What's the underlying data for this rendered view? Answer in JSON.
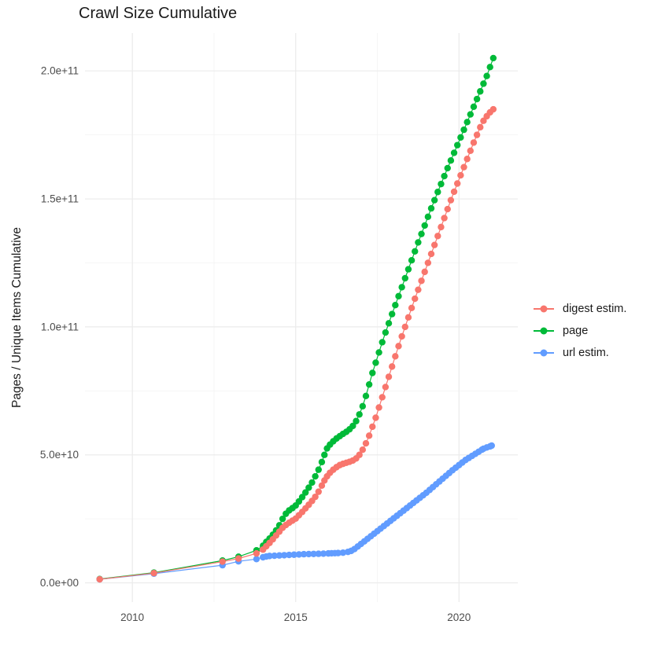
{
  "chart": {
    "title": "Crawl Size Cumulative",
    "y_axis_title": "Pages / Unique Items Cumulative"
  },
  "chart_data": {
    "type": "scatter",
    "title": "Crawl Size Cumulative",
    "xlabel": "",
    "ylabel": "Pages / Unique Items Cumulative",
    "values_unit": "billions (1e9 pages); axis labels shown in scientific notation",
    "grid": "major and minor, light gray on white panel",
    "legend_position": "right",
    "x_domain": [
      2008.55,
      2021.8
    ],
    "y_domain": [
      -7.5,
      214.8
    ],
    "x_ticks": {
      "values": [
        2010,
        2015,
        2020
      ],
      "labels": [
        "2010",
        "2015",
        "2020"
      ],
      "minor": [
        2012.5,
        2017.5
      ]
    },
    "y_ticks": {
      "values": [
        0,
        50,
        100,
        150,
        200
      ],
      "labels": [
        "0.0e+00",
        "5.0e+10",
        "1.0e+11",
        "1.5e+11",
        "2.0e+11"
      ],
      "minor": [
        25,
        75,
        125,
        175
      ]
    },
    "draw_order": [
      1,
      2,
      0
    ],
    "series": [
      {
        "name": "digest estim.",
        "color": "#F8766D",
        "points": [
          [
            2009.0,
            1.4
          ],
          [
            2010.66,
            3.8
          ],
          [
            2012.76,
            8.3
          ],
          [
            2013.25,
            9.5
          ],
          [
            2013.8,
            11.5
          ],
          [
            2014.0,
            13.0
          ],
          [
            2014.1,
            14.3
          ],
          [
            2014.2,
            15.6
          ],
          [
            2014.3,
            17.0
          ],
          [
            2014.4,
            18.5
          ],
          [
            2014.5,
            20.0
          ],
          [
            2014.6,
            21.5
          ],
          [
            2014.7,
            22.6
          ],
          [
            2014.8,
            23.5
          ],
          [
            2014.9,
            24.3
          ],
          [
            2015.0,
            25.1
          ],
          [
            2015.1,
            26.4
          ],
          [
            2015.2,
            27.7
          ],
          [
            2015.3,
            29.1
          ],
          [
            2015.4,
            30.5
          ],
          [
            2015.5,
            32.0
          ],
          [
            2015.6,
            33.6
          ],
          [
            2015.7,
            35.6
          ],
          [
            2015.8,
            38.0
          ],
          [
            2015.88,
            40.0
          ],
          [
            2015.96,
            41.6
          ],
          [
            2016.05,
            43.0
          ],
          [
            2016.15,
            44.2
          ],
          [
            2016.25,
            45.2
          ],
          [
            2016.35,
            46.0
          ],
          [
            2016.45,
            46.5
          ],
          [
            2016.55,
            46.9
          ],
          [
            2016.65,
            47.3
          ],
          [
            2016.75,
            47.8
          ],
          [
            2016.85,
            48.6
          ],
          [
            2016.95,
            50.0
          ],
          [
            2017.05,
            52.0
          ],
          [
            2017.15,
            54.5
          ],
          [
            2017.25,
            57.5
          ],
          [
            2017.35,
            61.0
          ],
          [
            2017.45,
            64.5
          ],
          [
            2017.55,
            68.5
          ],
          [
            2017.65,
            72.5
          ],
          [
            2017.75,
            76.5
          ],
          [
            2017.85,
            80.5
          ],
          [
            2017.95,
            84.5
          ],
          [
            2018.05,
            88.5
          ],
          [
            2018.15,
            92.5
          ],
          [
            2018.25,
            96.3
          ],
          [
            2018.35,
            100.0
          ],
          [
            2018.45,
            103.7
          ],
          [
            2018.55,
            107.4
          ],
          [
            2018.65,
            111.0
          ],
          [
            2018.75,
            114.5
          ],
          [
            2018.85,
            118.0
          ],
          [
            2018.95,
            121.5
          ],
          [
            2019.05,
            125.0
          ],
          [
            2019.15,
            128.5
          ],
          [
            2019.25,
            132.0
          ],
          [
            2019.35,
            135.5
          ],
          [
            2019.45,
            139.0
          ],
          [
            2019.55,
            142.5
          ],
          [
            2019.65,
            146.0
          ],
          [
            2019.75,
            149.5
          ],
          [
            2019.85,
            152.8
          ],
          [
            2019.95,
            156.0
          ],
          [
            2020.05,
            159.2
          ],
          [
            2020.15,
            162.4
          ],
          [
            2020.25,
            165.6
          ],
          [
            2020.35,
            168.8
          ],
          [
            2020.45,
            172.0
          ],
          [
            2020.55,
            175.0
          ],
          [
            2020.65,
            178.0
          ],
          [
            2020.75,
            180.5
          ],
          [
            2020.85,
            182.3
          ],
          [
            2020.95,
            183.8
          ],
          [
            2021.05,
            185.0
          ]
        ]
      },
      {
        "name": "page",
        "color": "#00BA38",
        "points": [
          [
            2009.0,
            1.5
          ],
          [
            2010.66,
            4.0
          ],
          [
            2012.76,
            8.7
          ],
          [
            2013.25,
            10.2
          ],
          [
            2013.8,
            12.7
          ],
          [
            2014.0,
            14.5
          ],
          [
            2014.1,
            16.0
          ],
          [
            2014.2,
            17.3
          ],
          [
            2014.3,
            18.8
          ],
          [
            2014.4,
            20.5
          ],
          [
            2014.5,
            22.5
          ],
          [
            2014.6,
            25.0
          ],
          [
            2014.7,
            27.0
          ],
          [
            2014.8,
            28.3
          ],
          [
            2014.9,
            29.2
          ],
          [
            2015.0,
            30.2
          ],
          [
            2015.1,
            31.8
          ],
          [
            2015.2,
            33.5
          ],
          [
            2015.3,
            35.3
          ],
          [
            2015.4,
            37.2
          ],
          [
            2015.5,
            39.2
          ],
          [
            2015.6,
            41.6
          ],
          [
            2015.7,
            44.2
          ],
          [
            2015.8,
            47.2
          ],
          [
            2015.88,
            50.0
          ],
          [
            2015.96,
            52.5
          ],
          [
            2016.05,
            54.0
          ],
          [
            2016.15,
            55.3
          ],
          [
            2016.25,
            56.4
          ],
          [
            2016.35,
            57.3
          ],
          [
            2016.45,
            58.2
          ],
          [
            2016.55,
            59.0
          ],
          [
            2016.65,
            60.0
          ],
          [
            2016.75,
            61.3
          ],
          [
            2016.85,
            63.2
          ],
          [
            2016.95,
            65.8
          ],
          [
            2017.05,
            69.0
          ],
          [
            2017.15,
            73.0
          ],
          [
            2017.25,
            77.5
          ],
          [
            2017.35,
            82.0
          ],
          [
            2017.45,
            86.0
          ],
          [
            2017.55,
            90.0
          ],
          [
            2017.65,
            94.0
          ],
          [
            2017.75,
            97.8
          ],
          [
            2017.85,
            101.4
          ],
          [
            2017.95,
            105.0
          ],
          [
            2018.05,
            108.5
          ],
          [
            2018.15,
            112.0
          ],
          [
            2018.25,
            115.5
          ],
          [
            2018.35,
            119.0
          ],
          [
            2018.45,
            122.5
          ],
          [
            2018.55,
            126.0
          ],
          [
            2018.65,
            129.5
          ],
          [
            2018.75,
            133.0
          ],
          [
            2018.85,
            136.3
          ],
          [
            2018.95,
            139.6
          ],
          [
            2019.05,
            143.0
          ],
          [
            2019.15,
            146.3
          ],
          [
            2019.25,
            149.5
          ],
          [
            2019.35,
            152.7
          ],
          [
            2019.45,
            155.8
          ],
          [
            2019.55,
            158.9
          ],
          [
            2019.65,
            162.0
          ],
          [
            2019.75,
            165.0
          ],
          [
            2019.85,
            168.0
          ],
          [
            2019.95,
            171.0
          ],
          [
            2020.05,
            174.0
          ],
          [
            2020.15,
            177.0
          ],
          [
            2020.25,
            180.0
          ],
          [
            2020.35,
            183.0
          ],
          [
            2020.45,
            186.0
          ],
          [
            2020.55,
            189.0
          ],
          [
            2020.65,
            192.0
          ],
          [
            2020.75,
            195.0
          ],
          [
            2020.85,
            198.0
          ],
          [
            2020.95,
            201.5
          ],
          [
            2021.05,
            205.0
          ]
        ]
      },
      {
        "name": "url estim.",
        "color": "#619CFF",
        "points": [
          [
            2009.0,
            1.4
          ],
          [
            2010.66,
            3.6
          ],
          [
            2012.76,
            6.9
          ],
          [
            2013.25,
            8.4
          ],
          [
            2013.8,
            9.3
          ],
          [
            2014.0,
            10.0
          ],
          [
            2014.1,
            10.3
          ],
          [
            2014.2,
            10.5
          ],
          [
            2014.35,
            10.6
          ],
          [
            2014.5,
            10.7
          ],
          [
            2014.65,
            10.8
          ],
          [
            2014.8,
            10.9
          ],
          [
            2014.95,
            11.0
          ],
          [
            2015.1,
            11.1
          ],
          [
            2015.25,
            11.2
          ],
          [
            2015.4,
            11.25
          ],
          [
            2015.55,
            11.3
          ],
          [
            2015.7,
            11.35
          ],
          [
            2015.85,
            11.4
          ],
          [
            2016.0,
            11.5
          ],
          [
            2016.1,
            11.55
          ],
          [
            2016.2,
            11.6
          ],
          [
            2016.3,
            11.65
          ],
          [
            2016.45,
            11.8
          ],
          [
            2016.6,
            12.1
          ],
          [
            2016.7,
            12.5
          ],
          [
            2016.8,
            13.2
          ],
          [
            2016.9,
            14.2
          ],
          [
            2017.0,
            15.2
          ],
          [
            2017.1,
            16.2
          ],
          [
            2017.2,
            17.2
          ],
          [
            2017.3,
            18.2
          ],
          [
            2017.4,
            19.2
          ],
          [
            2017.5,
            20.2
          ],
          [
            2017.6,
            21.2
          ],
          [
            2017.7,
            22.2
          ],
          [
            2017.8,
            23.2
          ],
          [
            2017.9,
            24.2
          ],
          [
            2018.0,
            25.2
          ],
          [
            2018.1,
            26.2
          ],
          [
            2018.2,
            27.2
          ],
          [
            2018.3,
            28.2
          ],
          [
            2018.4,
            29.2
          ],
          [
            2018.5,
            30.2
          ],
          [
            2018.6,
            31.2
          ],
          [
            2018.7,
            32.2
          ],
          [
            2018.8,
            33.2
          ],
          [
            2018.9,
            34.2
          ],
          [
            2019.0,
            35.2
          ],
          [
            2019.1,
            36.3
          ],
          [
            2019.2,
            37.4
          ],
          [
            2019.3,
            38.5
          ],
          [
            2019.4,
            39.6
          ],
          [
            2019.5,
            40.7
          ],
          [
            2019.6,
            41.8
          ],
          [
            2019.7,
            42.9
          ],
          [
            2019.8,
            44.0
          ],
          [
            2019.9,
            45.0
          ],
          [
            2020.0,
            46.0
          ],
          [
            2020.1,
            47.0
          ],
          [
            2020.2,
            48.0
          ],
          [
            2020.3,
            48.8
          ],
          [
            2020.4,
            49.6
          ],
          [
            2020.5,
            50.4
          ],
          [
            2020.6,
            51.2
          ],
          [
            2020.7,
            52.0
          ],
          [
            2020.75,
            52.4
          ],
          [
            2020.85,
            52.9
          ],
          [
            2020.95,
            53.3
          ],
          [
            2021.0,
            53.6
          ]
        ]
      }
    ]
  }
}
